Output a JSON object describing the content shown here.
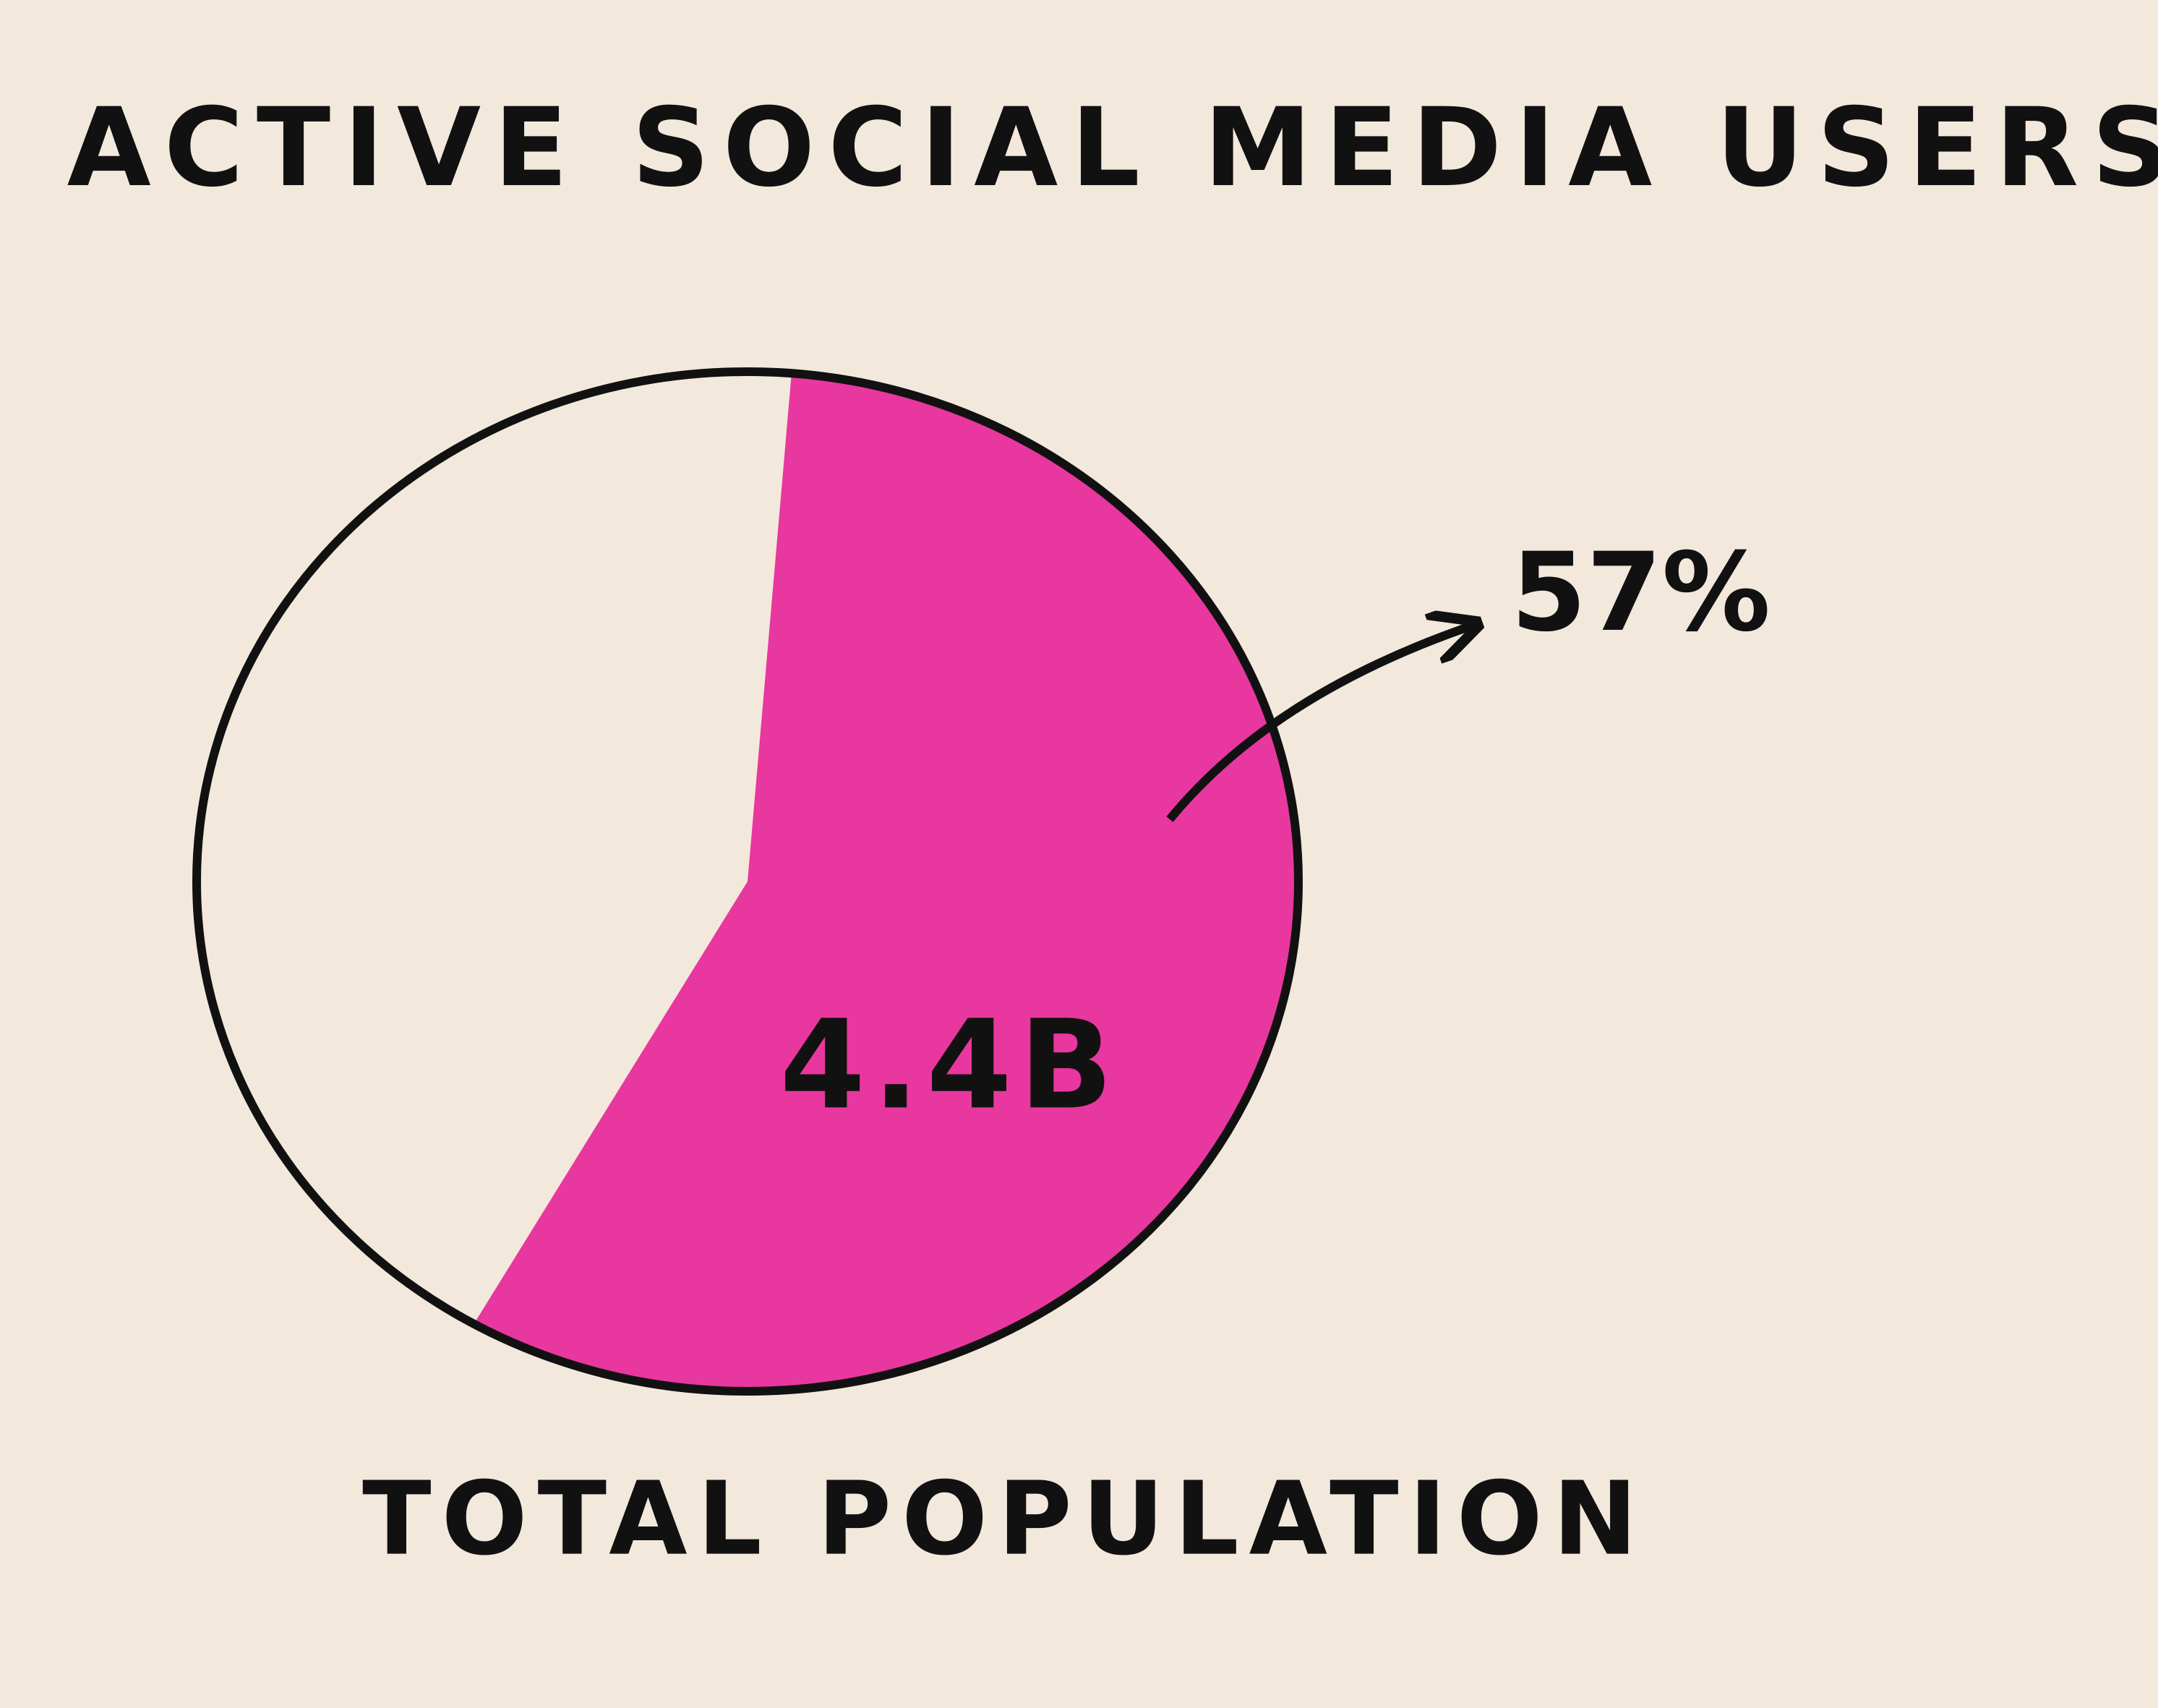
{
  "chart_data": {
    "type": "pie",
    "title": "ACTIVE SOCIAL MEDIA USERS",
    "caption": "TOTAL POPULATION",
    "values": [
      57
    ],
    "value_labels": [
      "57%"
    ],
    "color": "#e8379e",
    "annotation": "4.4B"
  }
}
